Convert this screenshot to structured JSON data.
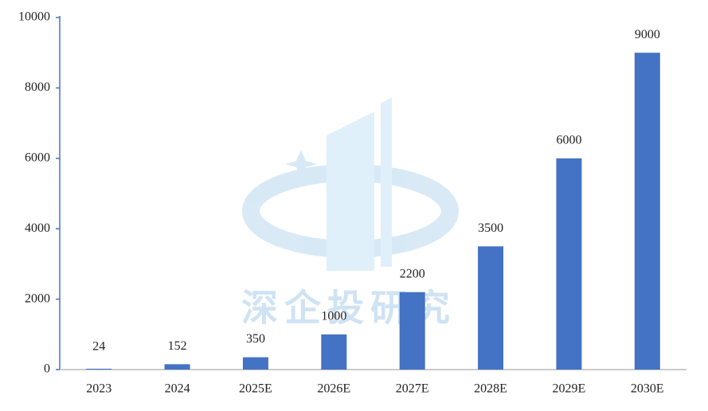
{
  "chart_data": {
    "type": "bar",
    "categories": [
      "2023",
      "2024",
      "2025E",
      "2026E",
      "2027E",
      "2028E",
      "2029E",
      "2030E"
    ],
    "values": [
      24,
      152,
      350,
      1000,
      2200,
      3500,
      6000,
      9000
    ],
    "color": "#4472c4",
    "ylim": [
      0,
      10000
    ],
    "yticks": [
      0,
      2000,
      4000,
      6000,
      8000,
      10000
    ],
    "grid": false,
    "watermark": "深企投研究"
  }
}
